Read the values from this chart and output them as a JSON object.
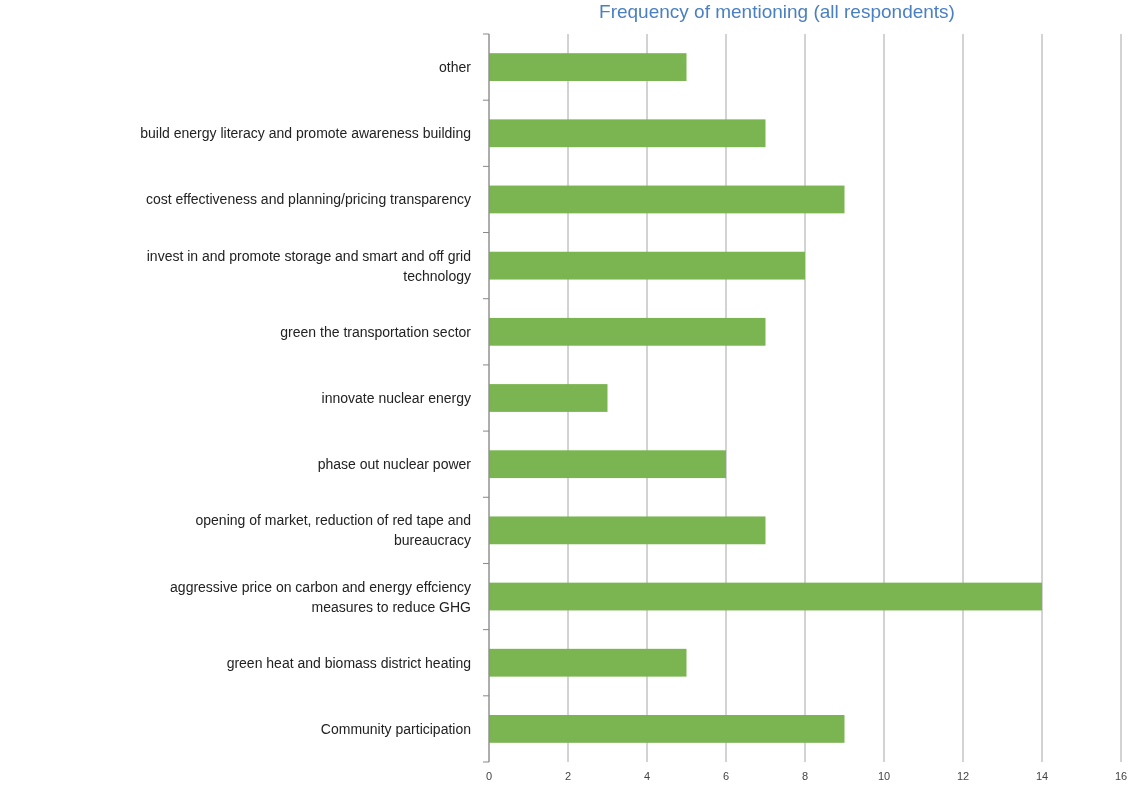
{
  "chart_data": {
    "type": "bar",
    "orientation": "horizontal",
    "title": "Frequency of mentioning (all respondents)",
    "categories": [
      "other",
      "build energy literacy and promote awareness building",
      "cost effectiveness and planning/pricing transparency",
      "invest in and promote storage and smart and off grid technology",
      "green the transportation sector",
      "innovate nuclear energy",
      "phase out nuclear power",
      "opening of market, reduction of red tape and bureaucracy",
      "aggressive price on carbon and energy effciency measures to reduce GHG",
      "green heat and biomass district heating",
      "Community participation"
    ],
    "values": [
      5,
      7,
      9,
      8,
      7,
      3,
      6,
      7,
      14,
      5,
      9
    ],
    "color": "#7ab552",
    "xlim": [
      0,
      16
    ],
    "xticks": [
      0,
      2,
      4,
      6,
      8,
      10,
      12,
      14,
      16
    ],
    "grid": "x"
  }
}
